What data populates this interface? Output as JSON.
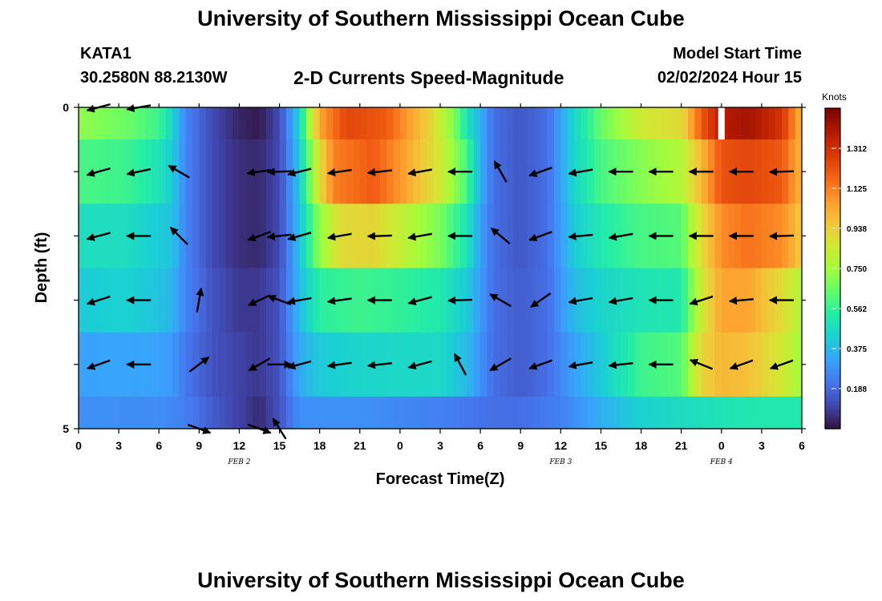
{
  "header": {
    "title": "University of Southern Mississippi Ocean Cube",
    "station": "KATA1",
    "coords": "30.2580N  88.2130W",
    "plot_title": "2-D Currents Speed-Magnitude",
    "model_start_label": "Model Start Time",
    "model_start_value": "02/02/2024 Hour 15"
  },
  "footer": {
    "title": "University of Southern Mississippi Ocean Cube"
  },
  "chart_data": {
    "type": "heatmap",
    "title": "2-D Currents Speed-Magnitude",
    "xlabel": "Forecast Time(Z)",
    "ylabel": "Depth (ft)",
    "x_hours_since_start": [
      0,
      54
    ],
    "x_tick_labels": [
      "0",
      "3",
      "6",
      "9",
      "12",
      "15",
      "18",
      "21",
      "0",
      "3",
      "6",
      "9",
      "12",
      "15",
      "18",
      "21",
      "0",
      "3",
      "6"
    ],
    "x_tick_hours": [
      0,
      3,
      6,
      9,
      12,
      15,
      18,
      21,
      24,
      27,
      30,
      33,
      36,
      39,
      42,
      45,
      48,
      51,
      54
    ],
    "date_labels": [
      {
        "text": "FEB 2",
        "hour": 12
      },
      {
        "text": "FEB 3",
        "hour": 36
      },
      {
        "text": "FEB 4",
        "hour": 48
      }
    ],
    "y_range": [
      0,
      5
    ],
    "y_tick_labels": [
      "0",
      "5"
    ],
    "y_tick_values": [
      0,
      1,
      2,
      3,
      4,
      5
    ],
    "colorbar": {
      "title": "Knots",
      "range": [
        0,
        1.5
      ],
      "ticks": [
        0.188,
        0.375,
        0.562,
        0.75,
        0.938,
        1.125,
        1.312
      ],
      "tick_labels": [
        "0.188",
        "0.375",
        "0.562",
        "0.750",
        "0.938",
        "1.125",
        "1.312"
      ],
      "colors": [
        "#30123b",
        "#4145ab",
        "#4675ed",
        "#39a2fc",
        "#1bcfd4",
        "#24eca6",
        "#61fc6c",
        "#a4fc3b",
        "#d1e834",
        "#f3c63a",
        "#fe9b2d",
        "#f36315",
        "#d93806",
        "#b11901",
        "#7a0402"
      ]
    },
    "bands": [
      {
        "depth_range": [
          0,
          0.5
        ],
        "keys": [
          [
            0,
            0.72
          ],
          [
            3.5,
            0.66
          ],
          [
            6,
            0.58
          ],
          [
            7,
            0.45
          ],
          [
            8,
            0.25
          ],
          [
            10,
            0.12
          ],
          [
            12,
            0.04
          ],
          [
            13.5,
            0.02
          ],
          [
            15,
            0.12
          ],
          [
            16.5,
            0.45
          ],
          [
            18,
            1.05
          ],
          [
            20,
            1.25
          ],
          [
            23,
            1.2
          ],
          [
            26,
            0.95
          ],
          [
            28,
            0.7
          ],
          [
            29,
            0.5
          ],
          [
            30,
            0.35
          ],
          [
            31,
            0.2
          ],
          [
            33,
            0.15
          ],
          [
            35,
            0.2
          ],
          [
            37,
            0.45
          ],
          [
            39,
            0.65
          ],
          [
            42,
            0.85
          ],
          [
            45,
            0.9
          ],
          [
            46.5,
            1.2
          ],
          [
            48,
            1.38
          ],
          [
            50,
            1.42
          ],
          [
            52.5,
            1.3
          ],
          [
            54,
            1.0
          ]
        ]
      },
      {
        "depth_range": [
          0.5,
          1.5
        ],
        "keys": [
          [
            0,
            0.6
          ],
          [
            3.5,
            0.58
          ],
          [
            6,
            0.5
          ],
          [
            7,
            0.42
          ],
          [
            8,
            0.25
          ],
          [
            10,
            0.12
          ],
          [
            12,
            0.06
          ],
          [
            13.5,
            0.05
          ],
          [
            15,
            0.12
          ],
          [
            16.5,
            0.42
          ],
          [
            18,
            0.9
          ],
          [
            19,
            1.12
          ],
          [
            22,
            1.2
          ],
          [
            24,
            1.08
          ],
          [
            27,
            0.85
          ],
          [
            29,
            0.6
          ],
          [
            30,
            0.35
          ],
          [
            31,
            0.2
          ],
          [
            33,
            0.15
          ],
          [
            35,
            0.2
          ],
          [
            37,
            0.45
          ],
          [
            39,
            0.6
          ],
          [
            42,
            0.7
          ],
          [
            45,
            0.78
          ],
          [
            46.5,
            1.0
          ],
          [
            48,
            1.22
          ],
          [
            50,
            1.25
          ],
          [
            52.5,
            1.2
          ],
          [
            54,
            1.0
          ]
        ]
      },
      {
        "depth_range": [
          1.5,
          2.5
        ],
        "keys": [
          [
            0,
            0.48
          ],
          [
            3.5,
            0.48
          ],
          [
            6,
            0.42
          ],
          [
            7,
            0.4
          ],
          [
            8,
            0.25
          ],
          [
            10,
            0.12
          ],
          [
            12,
            0.06
          ],
          [
            13.5,
            0.05
          ],
          [
            15,
            0.12
          ],
          [
            16.5,
            0.4
          ],
          [
            18,
            0.72
          ],
          [
            19.5,
            0.9
          ],
          [
            22,
            0.92
          ],
          [
            24,
            0.82
          ],
          [
            27,
            0.68
          ],
          [
            29,
            0.5
          ],
          [
            30,
            0.32
          ],
          [
            31,
            0.2
          ],
          [
            33,
            0.15
          ],
          [
            35,
            0.2
          ],
          [
            37,
            0.42
          ],
          [
            39,
            0.52
          ],
          [
            42,
            0.6
          ],
          [
            45,
            0.62
          ],
          [
            46.5,
            0.9
          ],
          [
            48,
            1.1
          ],
          [
            50,
            1.15
          ],
          [
            52.5,
            1.1
          ],
          [
            54,
            0.95
          ]
        ]
      },
      {
        "depth_range": [
          2.5,
          3.5
        ],
        "keys": [
          [
            0,
            0.42
          ],
          [
            3.5,
            0.44
          ],
          [
            6,
            0.4
          ],
          [
            7,
            0.36
          ],
          [
            8,
            0.25
          ],
          [
            10,
            0.14
          ],
          [
            12,
            0.08
          ],
          [
            13.5,
            0.08
          ],
          [
            15,
            0.14
          ],
          [
            16.5,
            0.38
          ],
          [
            18,
            0.55
          ],
          [
            21,
            0.58
          ],
          [
            24,
            0.56
          ],
          [
            27,
            0.52
          ],
          [
            29,
            0.42
          ],
          [
            30,
            0.3
          ],
          [
            31,
            0.2
          ],
          [
            33,
            0.16
          ],
          [
            35,
            0.2
          ],
          [
            37,
            0.38
          ],
          [
            39,
            0.45
          ],
          [
            42,
            0.5
          ],
          [
            45,
            0.52
          ],
          [
            46.5,
            0.85
          ],
          [
            48,
            1.05
          ],
          [
            50,
            1.05
          ],
          [
            52.5,
            0.9
          ],
          [
            54,
            0.78
          ]
        ]
      },
      {
        "depth_range": [
          3.5,
          4.5
        ],
        "keys": [
          [
            0,
            0.32
          ],
          [
            3.5,
            0.33
          ],
          [
            6,
            0.32
          ],
          [
            7,
            0.3
          ],
          [
            8,
            0.22
          ],
          [
            10,
            0.14
          ],
          [
            12,
            0.1
          ],
          [
            13.5,
            0.08
          ],
          [
            15,
            0.14
          ],
          [
            16.5,
            0.34
          ],
          [
            18,
            0.42
          ],
          [
            21,
            0.45
          ],
          [
            24,
            0.46
          ],
          [
            27,
            0.46
          ],
          [
            29,
            0.38
          ],
          [
            30,
            0.28
          ],
          [
            31,
            0.2
          ],
          [
            33,
            0.16
          ],
          [
            35,
            0.2
          ],
          [
            37,
            0.32
          ],
          [
            39,
            0.42
          ],
          [
            42,
            0.58
          ],
          [
            45,
            0.62
          ],
          [
            46.5,
            0.92
          ],
          [
            48,
            1.0
          ],
          [
            50,
            0.98
          ],
          [
            52.5,
            0.85
          ],
          [
            54,
            0.75
          ]
        ]
      },
      {
        "depth_range": [
          4.5,
          5
        ],
        "keys": [
          [
            0,
            0.28
          ],
          [
            6,
            0.27
          ],
          [
            7,
            0.26
          ],
          [
            8,
            0.24
          ],
          [
            10,
            0.16
          ],
          [
            12,
            0.1
          ],
          [
            13.5,
            0.05
          ],
          [
            15,
            0.14
          ],
          [
            16.5,
            0.28
          ],
          [
            21,
            0.28
          ],
          [
            24,
            0.26
          ],
          [
            27,
            0.24
          ],
          [
            29,
            0.22
          ],
          [
            31,
            0.2
          ],
          [
            33,
            0.2
          ],
          [
            36,
            0.24
          ],
          [
            39,
            0.35
          ],
          [
            42,
            0.44
          ],
          [
            45,
            0.47
          ],
          [
            48,
            0.5
          ],
          [
            51,
            0.52
          ],
          [
            54,
            0.52
          ]
        ]
      }
    ],
    "gap": {
      "hour": 48,
      "depth_range": [
        0,
        0.5
      ]
    },
    "vector_hours": [
      1.5,
      4.5,
      7.5,
      9,
      13.5,
      15,
      16.5,
      19.5,
      22.5,
      25.5,
      28.5,
      31.5,
      34.5,
      37.5,
      40.5,
      43.5,
      46.5,
      49.5,
      52.5
    ],
    "vector_rows": [
      {
        "depth": 0.0,
        "angles": [
          195,
          190,
          null,
          null,
          null,
          null,
          null,
          null,
          null,
          null,
          null,
          null,
          null,
          null,
          null,
          null,
          null,
          null,
          null
        ]
      },
      {
        "depth": 1.0,
        "angles": [
          196,
          192,
          150,
          null,
          188,
          182,
          194,
          188,
          186,
          190,
          180,
          120,
          200,
          190,
          180,
          180,
          180,
          180,
          182
        ]
      },
      {
        "depth": 2.0,
        "angles": [
          195,
          180,
          135,
          null,
          200,
          186,
          196,
          190,
          182,
          190,
          180,
          140,
          200,
          185,
          190,
          180,
          180,
          180,
          182
        ]
      },
      {
        "depth": 3.0,
        "angles": [
          198,
          180,
          null,
          80,
          205,
          160,
          190,
          188,
          180,
          195,
          182,
          150,
          215,
          190,
          190,
          180,
          198,
          185,
          180
        ]
      },
      {
        "depth": 4.0,
        "angles": [
          200,
          180,
          null,
          37,
          210,
          0,
          195,
          188,
          186,
          195,
          118,
          210,
          200,
          190,
          186,
          180,
          158,
          200,
          200
        ]
      },
      {
        "depth": 5.0,
        "angles": [
          null,
          null,
          null,
          340,
          340,
          122,
          null,
          null,
          null,
          null,
          null,
          null,
          null,
          null,
          null,
          null,
          null,
          null,
          null
        ]
      }
    ]
  }
}
